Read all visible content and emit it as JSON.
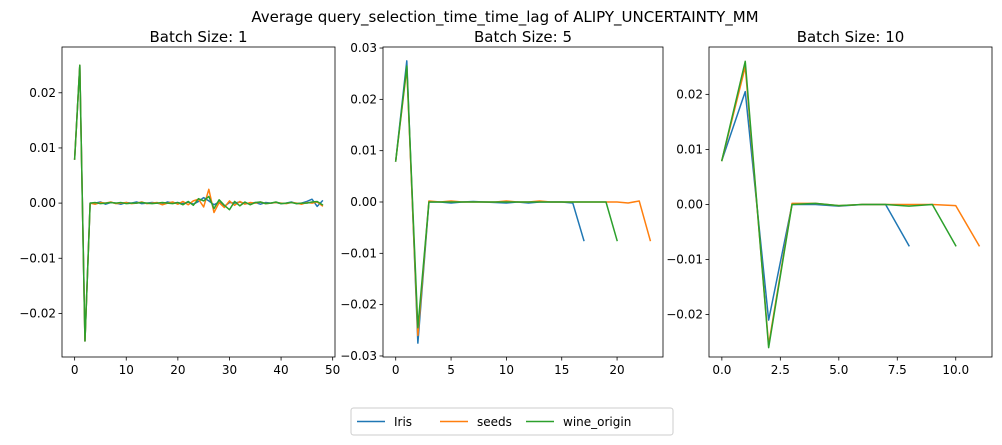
{
  "figure": {
    "suptitle": "Average query_selection_time_time_lag of ALIPY_UNCERTAINTY_MM"
  },
  "legend": {
    "placement": "bottom-center",
    "entries": [
      {
        "name": "Iris",
        "color": "#1f77b4"
      },
      {
        "name": "seeds",
        "color": "#ff7f0e"
      },
      {
        "name": "wine_origin",
        "color": "#2ca02c"
      }
    ]
  },
  "chart_data": [
    {
      "type": "line",
      "title": "Batch Size: 1",
      "xlabel": "",
      "ylabel": "",
      "xlim": [
        -2.45,
        50.45
      ],
      "ylim": [
        -0.0279,
        0.0283
      ],
      "xticks": [
        0,
        10,
        20,
        30,
        40,
        50
      ],
      "xtick_labels": [
        "0",
        "10",
        "20",
        "30",
        "40",
        "50"
      ],
      "yticks": [
        -0.02,
        -0.01,
        0.0,
        0.01,
        0.02
      ],
      "ytick_labels": [
        "−0.02",
        "−0.01",
        "0.00",
        "0.01",
        "0.02"
      ],
      "grid": false,
      "series": [
        {
          "name": "Iris",
          "color": "#1f77b4",
          "x": [
            0,
            1,
            2,
            3,
            4,
            5,
            6,
            7,
            8,
            9,
            10,
            11,
            12,
            13,
            14,
            15,
            16,
            17,
            18,
            19,
            20,
            21,
            22,
            23,
            24,
            25,
            26,
            27,
            28,
            29,
            30,
            31,
            32,
            33,
            34,
            35,
            36,
            37,
            38,
            39,
            40,
            41,
            42,
            43,
            44,
            45,
            46,
            47,
            48
          ],
          "y": [
            0.008,
            0.025,
            -0.025,
            0.0,
            0.0,
            0.0002,
            -0.0002,
            0.0001,
            0.0,
            -0.0002,
            0.0001,
            0.0,
            0.0002,
            -0.0001,
            0.0,
            0.0001,
            0.0,
            -0.0002,
            0.0002,
            0.0,
            0.0001,
            -0.0001,
            0.0002,
            -0.0002,
            0.0003,
            0.001,
            0.0004,
            -0.0003,
            0.0002,
            -0.0006,
            0.0001,
            0.0,
            0.0002,
            -0.0001,
            0.0,
            0.0001,
            -0.0002,
            0.0001,
            0.0,
            0.0001,
            -0.0001,
            0.0,
            0.0002,
            -0.0001,
            0.0,
            0.0003,
            0.0007,
            -0.0006,
            0.0004
          ]
        },
        {
          "name": "seeds",
          "color": "#ff7f0e",
          "x": [
            0,
            1,
            2,
            3,
            4,
            5,
            6,
            7,
            8,
            9,
            10,
            11,
            12,
            13,
            14,
            15,
            16,
            17,
            18,
            19,
            20,
            21,
            22,
            23,
            24,
            25,
            26,
            27,
            28,
            29,
            30,
            31,
            32,
            33,
            34,
            35,
            36,
            37,
            38,
            39,
            40,
            41,
            42,
            43,
            44,
            45,
            46,
            47,
            48
          ],
          "y": [
            0.008,
            0.025,
            -0.025,
            0.0,
            -0.0002,
            0.0001,
            0.0,
            0.0002,
            -0.0001,
            0.0,
            0.0001,
            -0.0001,
            0.0,
            0.0002,
            -0.0001,
            0.0,
            0.0001,
            -0.0003,
            0.0,
            0.0002,
            -0.0002,
            0.0003,
            -0.0003,
            0.0004,
            0.0007,
            -0.0007,
            0.0025,
            -0.0017,
            0.0001,
            -0.0008,
            0.0004,
            -0.0004,
            0.0003,
            -0.0002,
            0.0001,
            0.0,
            0.0002,
            -0.0001,
            0.0,
            0.0001,
            0.0,
            -0.0001,
            0.0001,
            0.0,
            -0.0002,
            0.0001,
            0.0,
            0.0002,
            -0.0005
          ]
        },
        {
          "name": "wine_origin",
          "color": "#2ca02c",
          "x": [
            0,
            1,
            2,
            3,
            4,
            5,
            6,
            7,
            8,
            9,
            10,
            11,
            12,
            13,
            14,
            15,
            16,
            17,
            18,
            19,
            20,
            21,
            22,
            23,
            24,
            25,
            26,
            27,
            28,
            29,
            30,
            31,
            32,
            33,
            34,
            35,
            36,
            37,
            38,
            39,
            40,
            41,
            42,
            43,
            44,
            45,
            46,
            47,
            48
          ],
          "y": [
            0.008,
            0.025,
            -0.025,
            0.0,
            0.0001,
            -0.0001,
            0.0,
            0.0001,
            0.0,
            0.0001,
            -0.0001,
            0.0,
            0.0,
            0.0001,
            0.0,
            -0.0001,
            0.0,
            0.0001,
            0.0,
            -0.0001,
            0.0001,
            -0.0003,
            0.0003,
            -0.0004,
            0.0008,
            0.0004,
            0.0012,
            -0.001,
            0.0006,
            -0.0004,
            -0.0012,
            0.0003,
            -0.0005,
            0.0002,
            -0.0003,
            0.0001,
            0.0002,
            -0.0001,
            0.0,
            0.0002,
            -0.0001,
            0.0,
            0.0001,
            -0.0001,
            0.0,
            0.0,
            0.0002,
            0.0003,
            -0.0003
          ]
        }
      ]
    },
    {
      "type": "line",
      "title": "Batch Size: 5",
      "xlabel": "",
      "ylabel": "",
      "xlim": [
        -1.15,
        24.15
      ],
      "ylim": [
        -0.0302,
        0.0302
      ],
      "xticks": [
        0,
        5,
        10,
        15,
        20
      ],
      "xtick_labels": [
        "0",
        "5",
        "10",
        "15",
        "20"
      ],
      "yticks": [
        -0.03,
        -0.02,
        -0.01,
        0.0,
        0.01,
        0.02,
        0.03
      ],
      "ytick_labels": [
        "−0.03",
        "−0.02",
        "−0.01",
        "0.00",
        "0.01",
        "0.02",
        "0.03"
      ],
      "grid": false,
      "series": [
        {
          "name": "Iris",
          "color": "#1f77b4",
          "x": [
            0,
            1,
            2,
            3,
            4,
            5,
            6,
            7,
            8,
            9,
            10,
            11,
            12,
            13,
            14,
            15,
            16,
            17
          ],
          "y": [
            0.008,
            0.0275,
            -0.0275,
            0.0,
            0.0,
            -0.0002,
            0.0,
            0.0001,
            0.0,
            -0.0001,
            -0.0002,
            0.0,
            -0.0002,
            0.0,
            0.0,
            0.0,
            -0.0002,
            -0.0075
          ]
        },
        {
          "name": "seeds",
          "color": "#ff7f0e",
          "x": [
            0,
            1,
            2,
            3,
            4,
            5,
            6,
            7,
            8,
            9,
            10,
            11,
            12,
            13,
            14,
            15,
            16,
            17,
            18,
            19,
            20,
            21,
            22,
            23
          ],
          "y": [
            0.008,
            0.026,
            -0.026,
            0.0002,
            0.0,
            0.0002,
            0.0,
            0.0,
            0.0,
            0.0,
            0.0002,
            0.0,
            0.0,
            0.0002,
            0.0,
            0.0,
            0.0,
            0.0,
            0.0,
            0.0,
            0.0,
            -0.0002,
            0.0002,
            -0.0075
          ]
        },
        {
          "name": "wine_origin",
          "color": "#2ca02c",
          "x": [
            0,
            1,
            2,
            3,
            4,
            5,
            6,
            7,
            8,
            9,
            10,
            11,
            12,
            13,
            14,
            15,
            16,
            17,
            18,
            19,
            20
          ],
          "y": [
            0.008,
            0.0265,
            -0.0245,
            0.0,
            0.0,
            0.0,
            0.0,
            0.0,
            0.0,
            0.0,
            0.0,
            0.0,
            0.0,
            0.0,
            0.0,
            0.0,
            0.0,
            0.0,
            0.0,
            0.0,
            -0.0075
          ]
        }
      ]
    },
    {
      "type": "line",
      "title": "Batch Size: 10",
      "xlabel": "",
      "ylabel": "",
      "xlim": [
        -0.55,
        11.55
      ],
      "ylim": [
        -0.0277,
        0.0286
      ],
      "xticks": [
        0,
        2.5,
        5,
        7.5,
        10
      ],
      "xtick_labels": [
        "0.0",
        "2.5",
        "5.0",
        "7.5",
        "10.0"
      ],
      "yticks": [
        -0.02,
        -0.01,
        0.0,
        0.01,
        0.02
      ],
      "ytick_labels": [
        "−0.02",
        "−0.01",
        "0.00",
        "0.01",
        "0.02"
      ],
      "grid": false,
      "series": [
        {
          "name": "Iris",
          "color": "#1f77b4",
          "x": [
            0,
            1,
            2,
            3,
            4,
            5,
            6,
            7,
            8
          ],
          "y": [
            0.008,
            0.0205,
            -0.021,
            0.0,
            0.0,
            -0.0003,
            0.0,
            0.0,
            -0.0075
          ]
        },
        {
          "name": "seeds",
          "color": "#ff7f0e",
          "x": [
            0,
            1,
            2,
            3,
            4,
            5,
            6,
            7,
            8,
            9,
            10,
            11
          ],
          "y": [
            0.008,
            0.025,
            -0.0255,
            0.0002,
            0.0002,
            -0.0002,
            0.0,
            0.0,
            0.0,
            0.0,
            -0.0002,
            -0.0075
          ]
        },
        {
          "name": "wine_origin",
          "color": "#2ca02c",
          "x": [
            0,
            1,
            2,
            3,
            4,
            5,
            6,
            7,
            8,
            9,
            10
          ],
          "y": [
            0.008,
            0.026,
            -0.026,
            0.0,
            0.0002,
            -0.0002,
            0.0,
            0.0,
            -0.0003,
            0.0,
            -0.0075
          ]
        }
      ]
    }
  ]
}
